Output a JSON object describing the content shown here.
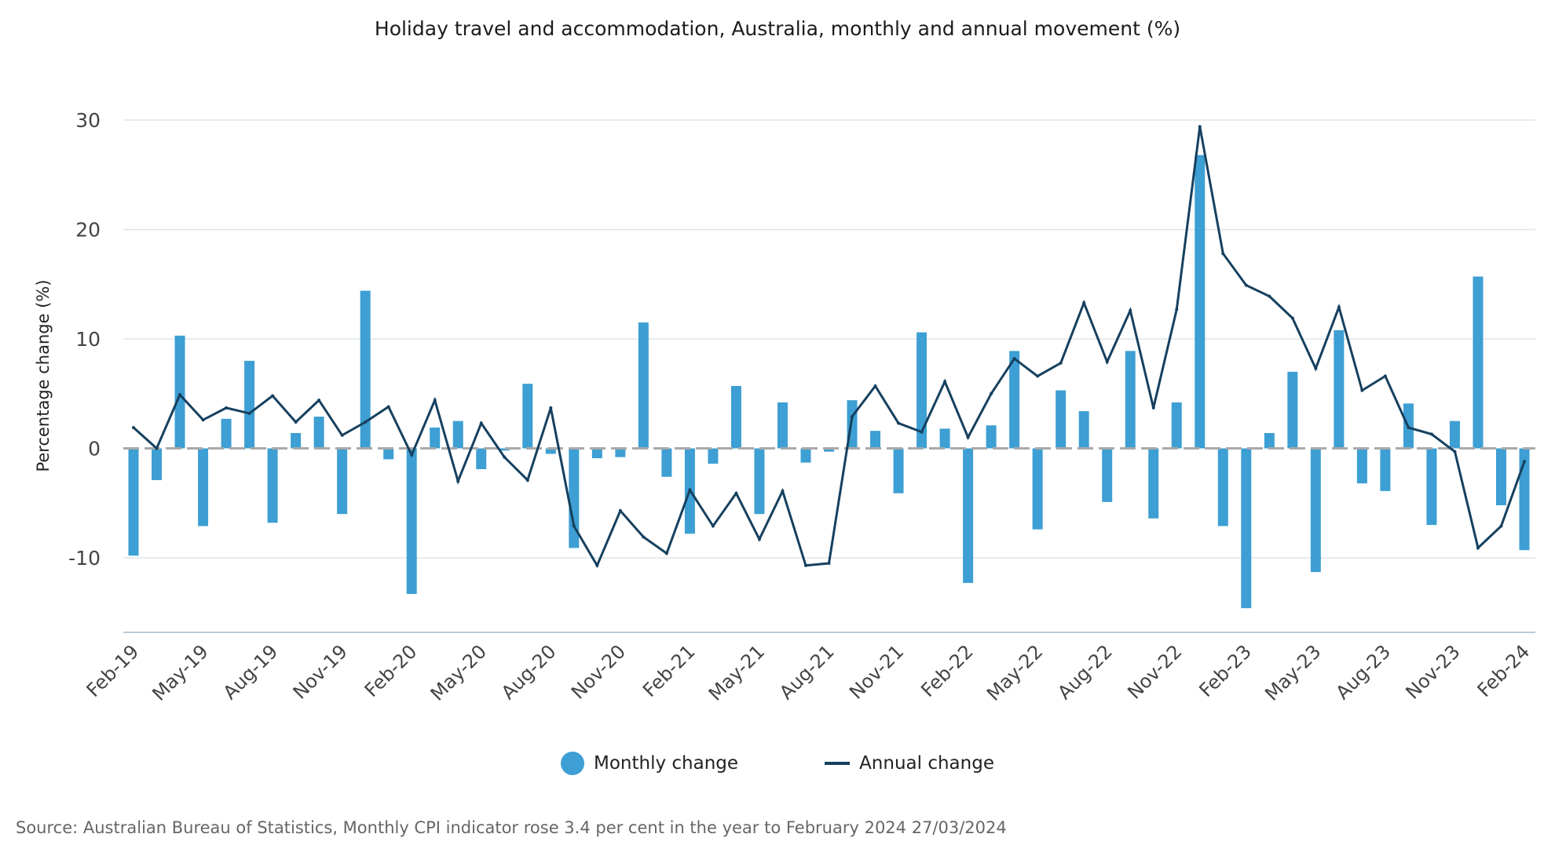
{
  "chart_data": {
    "type": "bar",
    "title": "Holiday travel and accommodation, Australia, monthly and annual movement (%)",
    "ylabel": "Percentage change (%)",
    "xlabel": "",
    "ylim": [
      -17,
      30
    ],
    "yticks": [
      30,
      20,
      10,
      0,
      -10
    ],
    "ytick_labels": [
      "30",
      "20",
      "10",
      "0",
      "-10"
    ],
    "grid": true,
    "categories": [
      "Feb-19",
      "Mar-19",
      "Apr-19",
      "May-19",
      "Jun-19",
      "Jul-19",
      "Aug-19",
      "Sep-19",
      "Oct-19",
      "Nov-19",
      "Dec-19",
      "Jan-20",
      "Feb-20",
      "Mar-20",
      "Apr-20",
      "May-20",
      "Jun-20",
      "Jul-20",
      "Aug-20",
      "Sep-20",
      "Oct-20",
      "Nov-20",
      "Dec-20",
      "Jan-21",
      "Feb-21",
      "Mar-21",
      "Apr-21",
      "May-21",
      "Jun-21",
      "Jul-21",
      "Aug-21",
      "Sep-21",
      "Oct-21",
      "Nov-21",
      "Dec-21",
      "Jan-22",
      "Feb-22",
      "Mar-22",
      "Apr-22",
      "May-22",
      "Jun-22",
      "Jul-22",
      "Aug-22",
      "Sep-22",
      "Oct-22",
      "Nov-22",
      "Dec-22",
      "Jan-23",
      "Feb-23",
      "Mar-23",
      "Apr-23",
      "May-23",
      "Jun-23",
      "Jul-23",
      "Aug-23",
      "Sep-23",
      "Oct-23",
      "Nov-23",
      "Dec-23",
      "Jan-24",
      "Feb-24"
    ],
    "x_tick_labels": [
      "Feb-19",
      "May-19",
      "Aug-19",
      "Nov-19",
      "Feb-20",
      "May-20",
      "Aug-20",
      "Nov-20",
      "Feb-21",
      "May-21",
      "Aug-21",
      "Nov-21",
      "Feb-22",
      "May-22",
      "Aug-22",
      "Nov-22",
      "Feb-23",
      "May-23",
      "Aug-23",
      "Nov-23",
      "Feb-24"
    ],
    "series": [
      {
        "name": "Monthly change",
        "type": "bar",
        "color": "#3d9fd3",
        "values": [
          -9.8,
          -2.9,
          10.3,
          -7.1,
          2.7,
          8.0,
          -6.8,
          1.4,
          2.9,
          -6.0,
          14.4,
          -1.0,
          -13.3,
          1.9,
          2.5,
          -1.9,
          -0.2,
          5.9,
          -0.5,
          -9.1,
          -0.9,
          -0.8,
          11.5,
          -2.6,
          -7.8,
          -1.4,
          5.7,
          -6.0,
          4.2,
          -1.3,
          -0.3,
          4.4,
          1.6,
          -4.1,
          10.6,
          1.8,
          -12.3,
          2.1,
          8.9,
          -7.4,
          5.3,
          3.4,
          -4.9,
          8.9,
          -6.4,
          4.2,
          26.8,
          -7.1,
          -14.6,
          1.4,
          7.0,
          -11.3,
          10.8,
          -3.2,
          -3.9,
          4.1,
          -7.0,
          2.5,
          15.7,
          -5.2,
          -9.3
        ]
      },
      {
        "name": "Annual change",
        "type": "line",
        "color": "#16405f",
        "values": [
          1.9,
          0.0,
          4.9,
          2.6,
          3.7,
          3.2,
          4.8,
          2.4,
          4.4,
          1.2,
          2.4,
          3.8,
          -0.6,
          4.4,
          -3.0,
          2.3,
          -0.8,
          -2.9,
          3.7,
          -7.1,
          -10.7,
          -5.7,
          -8.1,
          -9.6,
          -3.8,
          -7.1,
          -4.1,
          -8.3,
          -3.9,
          -10.7,
          -10.5,
          2.9,
          5.7,
          2.3,
          1.5,
          6.1,
          1.0,
          5.0,
          8.2,
          6.6,
          7.8,
          13.3,
          7.9,
          12.6,
          3.7,
          12.7,
          29.4,
          17.8,
          14.9,
          13.9,
          11.9,
          7.3,
          12.9,
          5.3,
          6.6,
          1.9,
          1.3,
          -0.3,
          -9.1,
          -7.1,
          -1.2
        ]
      }
    ]
  },
  "legend": {
    "monthly_label": "Monthly change",
    "annual_label": "Annual change"
  },
  "source": "Source: Australian Bureau of Statistics, Monthly CPI indicator rose 3.4 per cent in the year to February 2024 27/03/2024"
}
